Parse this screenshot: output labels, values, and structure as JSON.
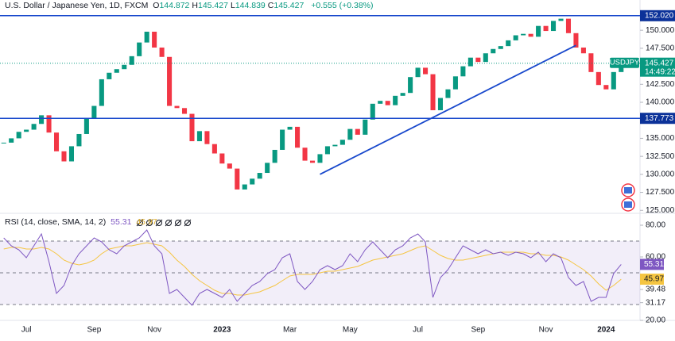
{
  "chart_data": [
    {
      "type": "candlestick",
      "title": "U.S. Dollar / Japanese Yen, 1D, FXCM",
      "ohlc": [
        {
          "label": "O",
          "value": "144.872"
        },
        {
          "label": "H",
          "value": "145.427"
        },
        {
          "label": "L",
          "value": "144.839"
        },
        {
          "label": "C",
          "value": "145.427"
        }
      ],
      "change": "+0.555 (+0.38%)",
      "categories": [
        null,
        null,
        null,
        "Jul",
        null,
        null,
        null,
        null,
        null,
        null,
        null,
        null,
        "Sep",
        null,
        null,
        null,
        null,
        null,
        null,
        null,
        "Nov",
        null,
        null,
        null,
        null,
        null,
        null,
        null,
        null,
        "2023",
        null,
        null,
        null,
        null,
        null,
        null,
        null,
        null,
        "Mar",
        null,
        null,
        null,
        null,
        null,
        null,
        null,
        "May",
        null,
        null,
        null,
        null,
        null,
        null,
        null,
        null,
        "Jul",
        null,
        null,
        null,
        null,
        null,
        null,
        null,
        "Sep",
        null,
        null,
        null,
        null,
        null,
        null,
        null,
        null,
        "Nov",
        null,
        null,
        null,
        null,
        null,
        null,
        null,
        "2024",
        null,
        null
      ],
      "values": [
        134.4,
        135.0,
        135.9,
        136.2,
        137.0,
        138.2,
        135.8,
        133.2,
        131.8,
        133.9,
        135.6,
        137.8,
        139.5,
        143.2,
        144.1,
        144.6,
        145.2,
        146.4,
        148.3,
        149.8,
        147.6,
        146.3,
        139.5,
        139.2,
        138.4,
        134.6,
        136.0,
        134.2,
        132.9,
        131.5,
        130.8,
        127.9,
        128.6,
        129.4,
        130.2,
        131.6,
        133.4,
        136.2,
        136.6,
        133.7,
        131.9,
        131.6,
        132.8,
        133.9,
        134.1,
        134.8,
        136.3,
        135.5,
        137.6,
        139.8,
        140.2,
        139.6,
        140.9,
        141.3,
        143.5,
        144.8,
        143.9,
        138.9,
        140.6,
        141.8,
        143.6,
        145.0,
        146.2,
        145.6,
        146.8,
        147.4,
        147.8,
        148.6,
        149.3,
        149.5,
        149.1,
        150.6,
        149.9,
        151.3,
        151.6,
        149.6,
        147.6,
        146.8,
        144.2,
        142.4,
        141.8,
        144.2,
        145.427
      ],
      "up_color": "#089981",
      "down_color": "#f23645",
      "ylim": [
        124.7,
        154.2
      ],
      "yticks": [
        {
          "value": 125,
          "label": "125.000"
        },
        {
          "value": 127.5,
          "label": "127.500"
        },
        {
          "value": 130,
          "label": "130.000"
        },
        {
          "value": 132.5,
          "label": "132.500"
        },
        {
          "value": 135,
          "label": "135.000"
        },
        {
          "value": 137.5,
          "label": "137.500"
        },
        {
          "value": 140,
          "label": "140.000"
        },
        {
          "value": 142.5,
          "label": "142.500"
        },
        {
          "value": 145,
          "label": "145.000"
        },
        {
          "value": 147.5,
          "label": "147.500"
        },
        {
          "value": 150,
          "label": "150.000"
        }
      ],
      "levels": [
        {
          "value": 152.02,
          "label": "152.020"
        },
        {
          "value": 137.773,
          "label": "137.773"
        }
      ],
      "level_color": "#1848cc",
      "last": {
        "symbol": "USDJPY",
        "label": "145.427",
        "countdown": "14:49:22"
      },
      "trendline": {
        "start_index": 42,
        "start": 130.0,
        "end_index": 76,
        "end": 147.9
      }
    },
    {
      "type": "line",
      "title": "RSI (14, close, SMA, 14, 2)",
      "ylim": [
        20,
        86
      ],
      "yticks": [
        {
          "value": 80,
          "label": "80.00"
        },
        {
          "value": 60,
          "label": "60.00"
        },
        {
          "value": 39.48,
          "label": "39.48"
        },
        {
          "value": 31.17,
          "label": "31.17"
        },
        {
          "value": 20,
          "label": "20.00"
        }
      ],
      "levels": [
        70,
        50,
        30
      ],
      "series": [
        {
          "color": "#7e57c2",
          "last_label": "55.31",
          "values": [
            72,
            67,
            64.5,
            59.5,
            67,
            74.5,
            57,
            37,
            42,
            54.5,
            62,
            67,
            72,
            69.5,
            64.5,
            62,
            67,
            69.5,
            72,
            77,
            67,
            62,
            37,
            39.5,
            34.5,
            29.5,
            37,
            39.5,
            37,
            34.5,
            39.5,
            32,
            37,
            42,
            44.5,
            49.5,
            52,
            59.5,
            62,
            44.5,
            39.5,
            44.5,
            52,
            54.5,
            52,
            54.5,
            62,
            57,
            64.5,
            69.5,
            64.5,
            59.5,
            64.5,
            67,
            72,
            74.5,
            69.5,
            34.5,
            47,
            52,
            59.5,
            67,
            64.5,
            62,
            64.5,
            62,
            63,
            61,
            63,
            62,
            59.5,
            63,
            57,
            62,
            59.5,
            47,
            42,
            44.5,
            32,
            34.5,
            34.5,
            49.5,
            55.31
          ]
        },
        {
          "color": "#f5c542",
          "last_label": "45.97",
          "values": [
            65,
            66,
            66,
            65,
            65,
            66,
            65,
            62,
            58,
            56,
            55,
            56,
            58,
            62,
            65,
            66,
            67,
            67,
            68,
            69,
            68,
            67,
            63,
            58,
            54,
            49,
            45,
            42,
            39,
            37,
            37,
            36,
            36,
            37,
            38,
            40,
            42,
            45,
            48,
            49,
            49,
            49,
            50,
            51,
            51,
            52,
            53,
            54,
            56,
            58,
            59,
            60,
            61,
            62,
            64,
            66,
            67,
            64,
            61,
            59,
            58,
            58,
            59,
            60,
            61,
            62,
            63,
            63,
            63,
            63,
            62,
            62,
            61,
            61,
            60,
            58,
            55,
            52,
            48,
            43,
            39,
            42,
            45.97
          ]
        }
      ]
    }
  ]
}
